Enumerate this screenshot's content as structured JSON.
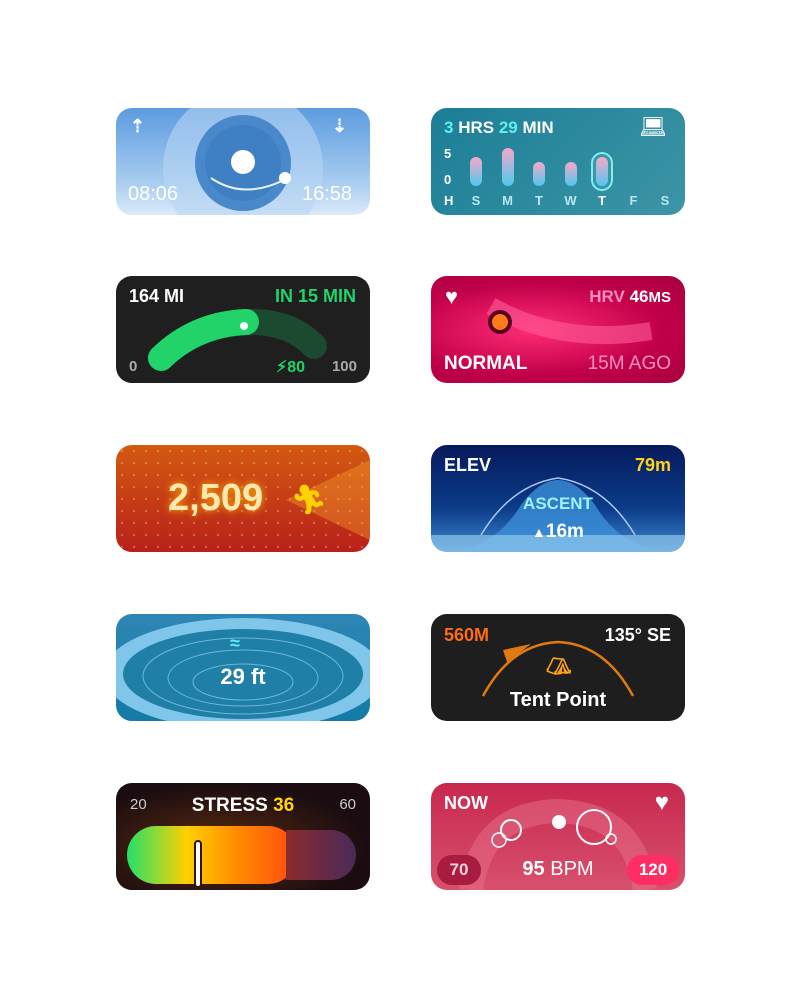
{
  "daylight": {
    "sunrise": "08:06",
    "sunset": "16:58",
    "icons": [
      "sunrise-icon",
      "sunset-icon"
    ]
  },
  "screen_time": {
    "hours": "3",
    "hrs_label": "HRS",
    "minutes": "29",
    "min_label": "MIN",
    "y_max": "5",
    "y_min": "0",
    "y_unit": "H",
    "days": [
      "S",
      "M",
      "T",
      "W",
      "T",
      "F",
      "S"
    ],
    "values": [
      3,
      4,
      2.5,
      2.5,
      3,
      0,
      0
    ],
    "selected_day": 4,
    "icon": "laptop-icon"
  },
  "ev_charge": {
    "range": "164 MI",
    "eta": "IN 15 MIN",
    "min": "0",
    "max": "100",
    "charge": "80",
    "charge_percent": 80,
    "current_percent": 55,
    "accent": "#22d36a"
  },
  "hrv": {
    "label": "HRV",
    "value": "46",
    "unit": "MS",
    "status": "NORMAL",
    "time": "15M AGO",
    "icon": "heart-icon"
  },
  "steps": {
    "value": "2,509",
    "icon": "running-figure-icon"
  },
  "elevation": {
    "label": "ELEV",
    "value": "79m",
    "ascent_label": "ASCENT",
    "ascent_value": "16m"
  },
  "depth": {
    "value": "29 ft",
    "icon": "water-depth-icon"
  },
  "waypoint": {
    "distance": "560M",
    "bearing": "135° SE",
    "name": "Tent Point",
    "icon": "tent-icon"
  },
  "stress": {
    "min": "20",
    "max": "60",
    "label": "STRESS",
    "value": "36"
  },
  "heart_rate": {
    "label": "NOW",
    "low": "70",
    "value": "95",
    "unit": "BPM",
    "high": "120",
    "icon": "heart-icon"
  }
}
